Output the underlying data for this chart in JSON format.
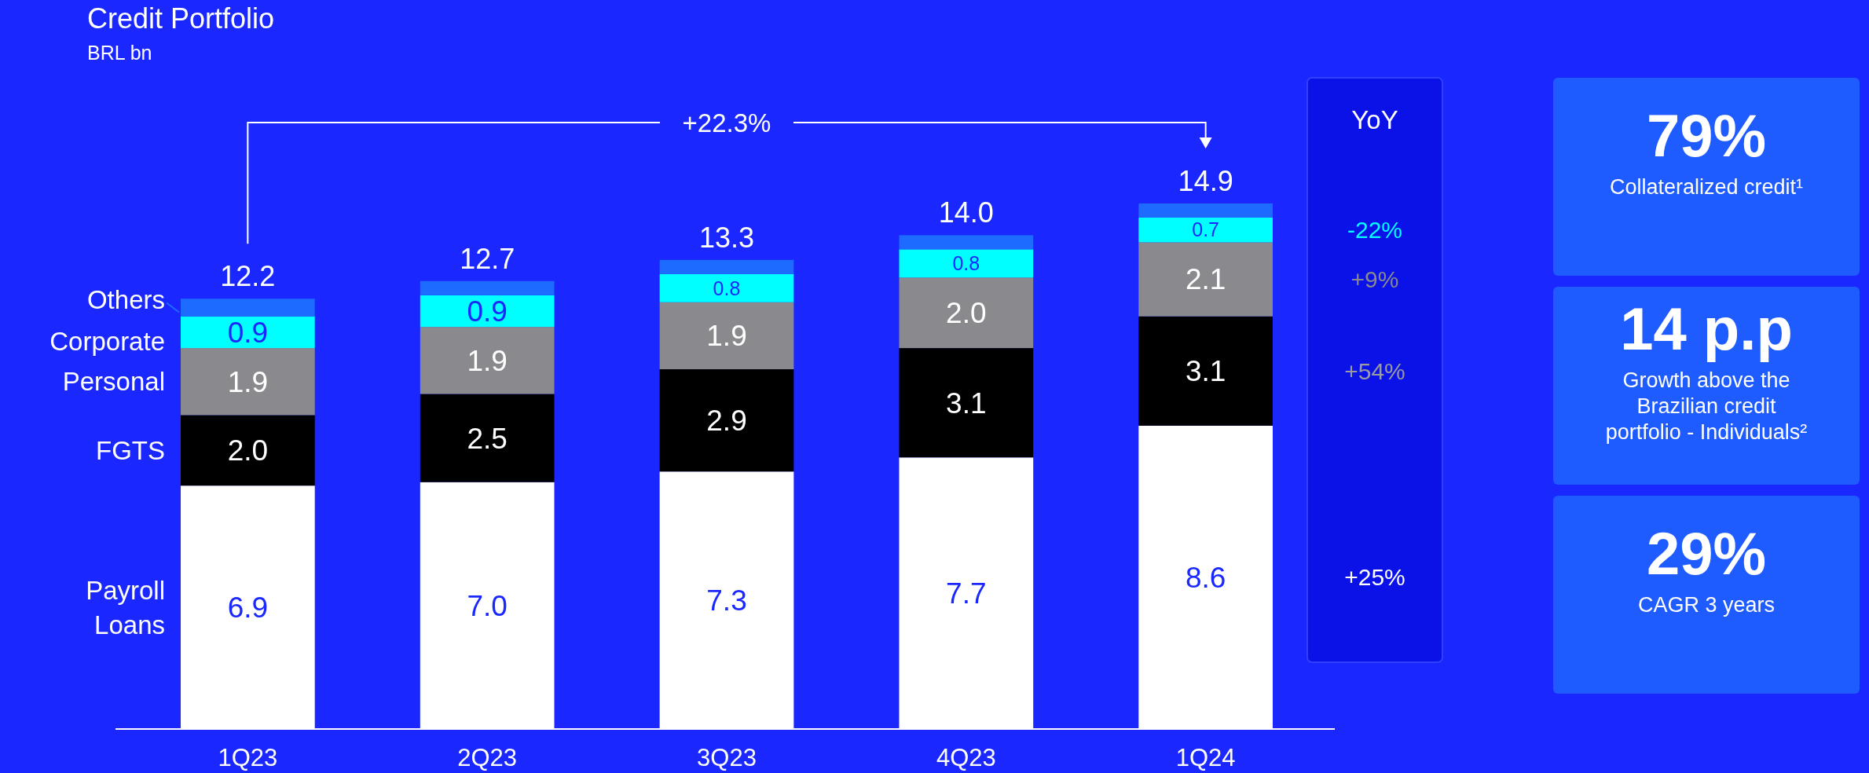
{
  "chart_data": {
    "type": "bar",
    "title": "Credit Portfolio",
    "subtitle": "BRL bn",
    "stacked": true,
    "legend": "left",
    "categories": [
      "1Q23",
      "2Q23",
      "3Q23",
      "4Q23",
      "1Q24"
    ],
    "series": [
      {
        "name": "Payroll Loans",
        "color": "#ffffff",
        "values": [
          6.9,
          7.0,
          7.3,
          7.7,
          8.6
        ],
        "value_labels": [
          "6.9",
          "7.0",
          "7.3",
          "7.7",
          "8.6"
        ]
      },
      {
        "name": "FGTS",
        "color": "#000000",
        "values": [
          2.0,
          2.5,
          2.9,
          3.1,
          3.1
        ],
        "value_labels": [
          "2.0",
          "2.5",
          "2.9",
          "3.1",
          "3.1"
        ]
      },
      {
        "name": "Personal",
        "color": "#8a8a8e",
        "values": [
          1.9,
          1.9,
          1.9,
          2.0,
          2.1
        ],
        "value_labels": [
          "1.9",
          "1.9",
          "1.9",
          "2.0",
          "2.1"
        ]
      },
      {
        "name": "Corporate",
        "color": "#00ffff",
        "values": [
          0.9,
          0.9,
          0.8,
          0.8,
          0.7
        ],
        "value_labels": [
          "0.9",
          "0.9",
          "0.8",
          "0.8",
          "0.7"
        ]
      },
      {
        "name": "Others",
        "color": "#1e6bff",
        "values": [
          0.5,
          0.4,
          0.4,
          0.4,
          0.4
        ],
        "value_labels": [
          null,
          null,
          null,
          null,
          null
        ]
      }
    ],
    "totals": [
      "12.2",
      "12.7",
      "13.3",
      "14.0",
      "14.9"
    ],
    "annotations": [
      "+22.3%",
      "YoY",
      "-22%",
      "+9%",
      "+54%",
      "+25%",
      "79%",
      "Collateralized credit¹",
      "14 p.p",
      "Growth above the Brazilian credit portfolio - Individuals²",
      "29%",
      "CAGR 3 years"
    ]
  }
}
